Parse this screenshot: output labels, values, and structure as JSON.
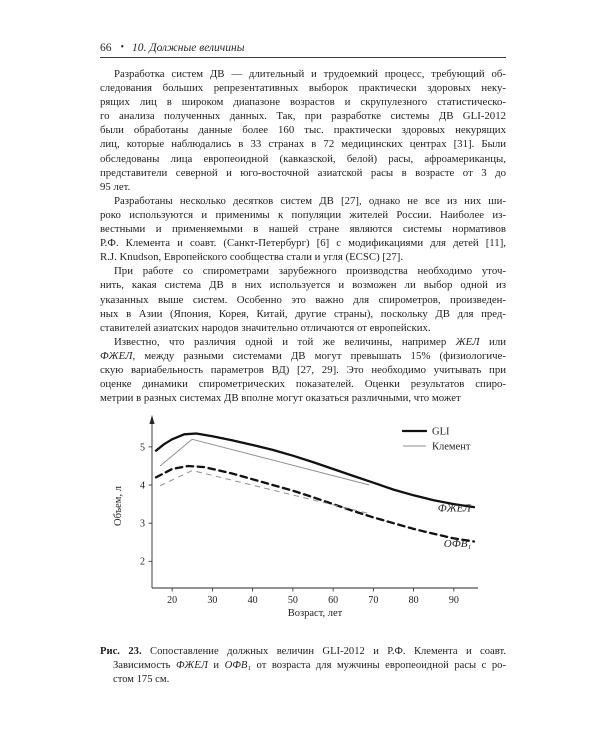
{
  "header": {
    "page_number": "66",
    "bullet": "•",
    "chapter": "10. Должные величины"
  },
  "italic_terms": [
    "ФЖЕЛ",
    "ЖЕЛ"
  ],
  "paragraphs": [
    {
      "lines": [
        "Разработка систем ДВ — длительный и трудоемкий процесс, требующий об-",
        "следования больших репрезентативных выборок практически здоровых неку-",
        "рящих лиц в широком диапазоне возрастов и скрупулезного статистическо-",
        "го анализа полученных данных. Так, при разработке системы ДВ GLI-2012",
        "были обработаны данные более 160 тыс. практически здоровых некурящих",
        "лиц, которые наблюдались в 33 странах в 72 медицинских центрах [31]. Были",
        "обследованы лица европеоидной (кавказской, белой) расы, афроамериканцы,",
        "представители северной и юго-восточной азиатской расы в возрасте от 3 до",
        "95 лет."
      ]
    },
    {
      "lines": [
        "Разработаны несколько десятков систем ДВ [27], однако не все из них ши-",
        "роко используются и применимы к популяции жителей России. Наиболее из-",
        "вестными и применяемыми в нашей стране являются системы нормативов",
        "Р.Ф. Клемента и соавт. (Санкт-Петербург) [6] с модификациями для детей [11],",
        "R.J. Knudson, Европейского сообщества стали и угля (ECSC) [27]."
      ]
    },
    {
      "lines": [
        "При работе со спирометрами зарубежного производства необходимо уточ-",
        "нить, какая система ДВ в них используется и возможен ли выбор одной из",
        "указанных выше систем. Особенно это важно для спирометров, произведен-",
        "ных в Азии (Япония, Корея, Китай, другие страны), поскольку ДВ для пред-",
        "ставителей азиатских народов значительно отличаются от европейских."
      ]
    },
    {
      "lines": [
        "Известно, что различия одной и той же величины, например ЖЕЛ или",
        "ФЖЕЛ, между разными системами ДВ могут превышать 15% (физиологиче-",
        "скую вариабельность параметров ВД) [27, 29]. Это необходимо учитывать при",
        "оценке динамики спирометрических показателей. Оценки результатов спиро-",
        "метрии в разных системах ДВ вполне могут оказаться различными, что может"
      ]
    }
  ],
  "figure": {
    "caption": {
      "label": "Рис. 23.",
      "line1": "Сопоставление должных величин GLI-2012 и Р.Ф. Клемента и соавт.",
      "line2_segments": [
        {
          "t": "Зависимость "
        },
        {
          "t": "ФЖЕЛ",
          "i": true
        },
        {
          "t": " и "
        },
        {
          "t": "ОФВ₁",
          "i": true
        },
        {
          "t": " от возраста для мужчины европеоидной расы с ро-"
        }
      ],
      "line3": "стом 175 см."
    }
  },
  "chart_data": {
    "type": "line",
    "title": "",
    "xlabel": "Возраст, лет",
    "ylabel": "Объем, л",
    "xlim": [
      15,
      96
    ],
    "ylim": [
      1.3,
      5.6
    ],
    "xticks": [
      20,
      30,
      40,
      50,
      60,
      70,
      80,
      90
    ],
    "yticks": [
      2,
      3,
      4,
      5
    ],
    "grid": false,
    "legend_position": "top-right-inside",
    "legend": [
      {
        "name": "GLI",
        "style": "thick-solid"
      },
      {
        "name": "Клемент",
        "style": "thin-solid"
      }
    ],
    "annotations": [
      {
        "text": "ФЖЕЛ",
        "x": 86,
        "y": 3.3,
        "italic": true
      },
      {
        "text": "ОФВ₁",
        "x": 87.5,
        "y": 2.38,
        "italic": true
      }
    ],
    "series": [
      {
        "name": "GLI ФЖЕЛ",
        "line": "solid",
        "weight": "thick",
        "points": [
          [
            16,
            4.9
          ],
          [
            18,
            5.07
          ],
          [
            20,
            5.2
          ],
          [
            23,
            5.33
          ],
          [
            26,
            5.35
          ],
          [
            30,
            5.28
          ],
          [
            35,
            5.17
          ],
          [
            40,
            5.05
          ],
          [
            45,
            4.92
          ],
          [
            50,
            4.77
          ],
          [
            55,
            4.6
          ],
          [
            60,
            4.42
          ],
          [
            65,
            4.24
          ],
          [
            70,
            4.06
          ],
          [
            75,
            3.88
          ],
          [
            80,
            3.73
          ],
          [
            85,
            3.6
          ],
          [
            90,
            3.5
          ],
          [
            95,
            3.42
          ]
        ]
      },
      {
        "name": "Клемент ФЖЕЛ",
        "line": "solid",
        "weight": "thin",
        "points": [
          [
            17,
            4.5
          ],
          [
            25,
            5.2
          ],
          [
            69,
            4.0
          ]
        ]
      },
      {
        "name": "GLI ОФВ₁",
        "line": "dashed",
        "weight": "thick",
        "points": [
          [
            16,
            4.2
          ],
          [
            20,
            4.42
          ],
          [
            24,
            4.5
          ],
          [
            28,
            4.47
          ],
          [
            35,
            4.3
          ],
          [
            40,
            4.15
          ],
          [
            45,
            4.0
          ],
          [
            50,
            3.85
          ],
          [
            55,
            3.68
          ],
          [
            60,
            3.5
          ],
          [
            65,
            3.32
          ],
          [
            70,
            3.15
          ],
          [
            75,
            3.0
          ],
          [
            80,
            2.85
          ],
          [
            85,
            2.72
          ],
          [
            90,
            2.6
          ],
          [
            95,
            2.52
          ]
        ]
      },
      {
        "name": "Клемент ОФВ₁",
        "line": "dashed",
        "weight": "thin",
        "points": [
          [
            17,
            3.98
          ],
          [
            25,
            4.38
          ],
          [
            69,
            3.25
          ]
        ]
      }
    ]
  }
}
